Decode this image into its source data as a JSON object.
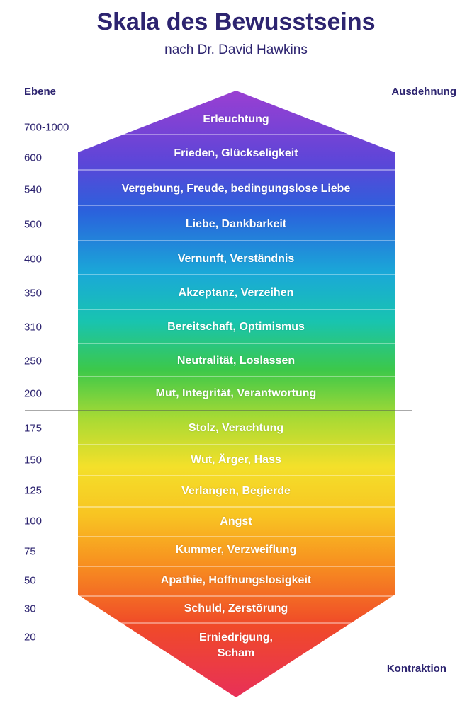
{
  "header": {
    "title": "Skala des Bewusstseins",
    "subtitle": "nach Dr. David Hawkins"
  },
  "axis_labels": {
    "left": "Ebene",
    "top_right": "Ausdehnung",
    "bottom_right": "Kontraktion"
  },
  "levels": [
    {
      "level": "700-1000",
      "label": "Erleuchtung"
    },
    {
      "level": "600",
      "label": "Frieden, Glückseligkeit"
    },
    {
      "level": "540",
      "label": "Vergebung, Freude, bedingungslose Liebe"
    },
    {
      "level": "500",
      "label": "Liebe, Dankbarkeit"
    },
    {
      "level": "400",
      "label": "Vernunft, Verständnis"
    },
    {
      "level": "350",
      "label": "Akzeptanz, Verzeihen"
    },
    {
      "level": "310",
      "label": "Bereitschaft, Optimismus"
    },
    {
      "level": "250",
      "label": "Neutralität, Loslassen"
    },
    {
      "level": "200",
      "label": "Mut, Integrität, Verantwortung"
    },
    {
      "level": "175",
      "label": "Stolz, Verachtung"
    },
    {
      "level": "150",
      "label": "Wut, Ärger, Hass"
    },
    {
      "level": "125",
      "label": "Verlangen, Begierde"
    },
    {
      "level": "100",
      "label": "Angst"
    },
    {
      "level": "75",
      "label": "Kummer, Verzweiflung"
    },
    {
      "level": "50",
      "label": "Apathie, Hoffnungslosigkeit"
    },
    {
      "level": "30",
      "label": "Schuld, Zerstörung"
    },
    {
      "level": "20",
      "label": "Erniedrigung, Scham"
    }
  ]
}
